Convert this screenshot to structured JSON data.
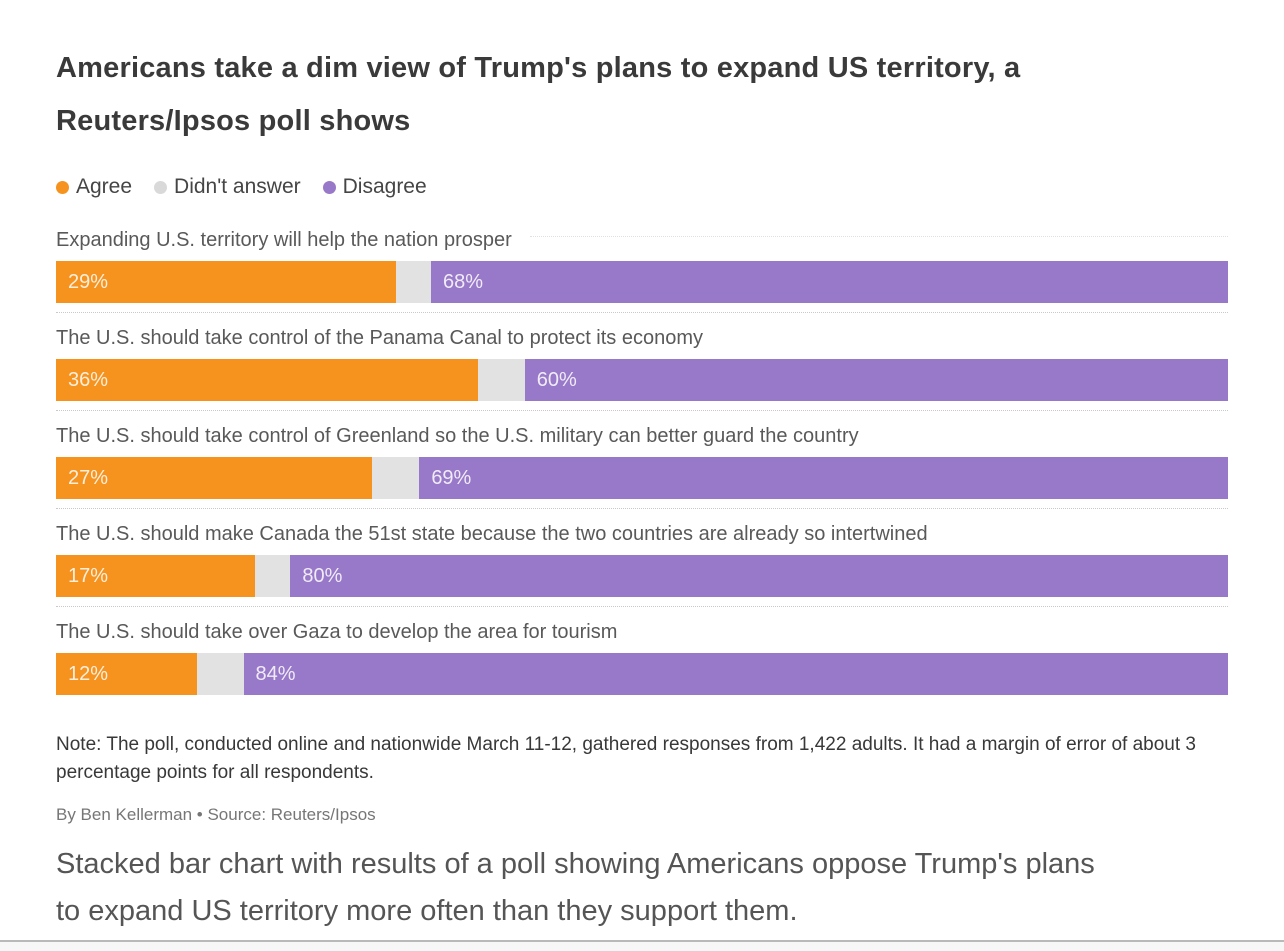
{
  "title": "Americans take a dim view of Trump's plans to expand US territory, a Reuters/Ipsos poll shows",
  "legend": {
    "items": [
      {
        "label": "Agree",
        "color": "#f6921e"
      },
      {
        "label": "Didn't answer",
        "color": "#d9d9d9"
      },
      {
        "label": "Disagree",
        "color": "#9878c8"
      }
    ]
  },
  "chart_data": {
    "type": "bar",
    "stacked": true,
    "orientation": "horizontal",
    "unit": "%",
    "xlim": [
      0,
      100
    ],
    "grid": "dotted row separators",
    "legend_position": "top-left",
    "categories": [
      "Expanding U.S. territory will help the nation prosper",
      "The U.S. should take control of the Panama Canal to protect its economy",
      "The U.S. should take control of Greenland so the U.S. military can better guard the country",
      "The U.S. should make Canada the 51st state because the two countries are already so intertwined",
      "The U.S. should take over Gaza to develop the area for tourism"
    ],
    "series": [
      {
        "name": "Agree",
        "color": "#f6921e",
        "labeled": true,
        "values": [
          29,
          36,
          27,
          17,
          12
        ]
      },
      {
        "name": "Didn't answer",
        "color": "#e2e2e2",
        "labeled": false,
        "values": [
          3,
          4,
          4,
          3,
          4
        ]
      },
      {
        "name": "Disagree",
        "color": "#9878c8",
        "labeled": true,
        "values": [
          68,
          60,
          69,
          80,
          84
        ]
      }
    ]
  },
  "note": "Note: The poll, conducted online and nationwide March 11-12, gathered responses from 1,422 adults. It had a margin of error of about 3 percentage points for all respondents.",
  "byline": "By Ben Kellerman • Source: Reuters/Ipsos",
  "caption": "Stacked bar chart with results of a poll showing Americans oppose Trump's plans to expand US territory more often than they support them."
}
